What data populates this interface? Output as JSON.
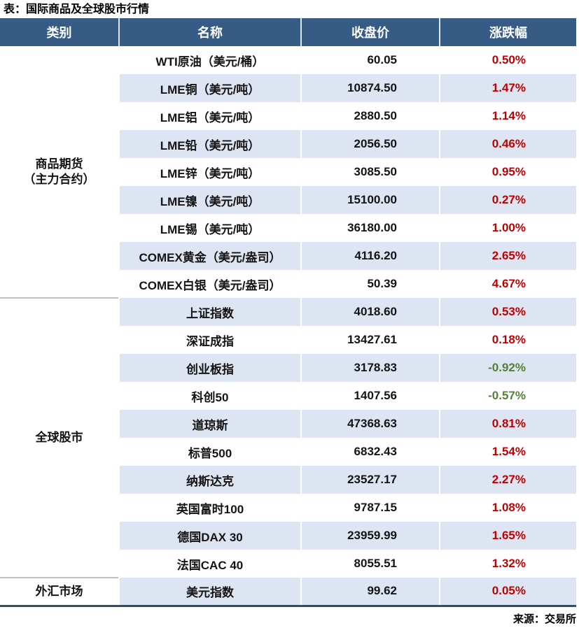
{
  "chart_data": {
    "type": "table",
    "title": "表：国际商品及全球股市行情",
    "source": "来源：交易所",
    "columns": [
      "类别",
      "名称",
      "收盘价",
      "涨跌幅"
    ],
    "groups": [
      {
        "category": [
          "商品期货",
          "（主力合约）"
        ],
        "rows": [
          {
            "name": "WTI原油（美元/桶）",
            "close": "60.05",
            "change": "0.50%",
            "direction": "up"
          },
          {
            "name": "LME铜（美元/吨）",
            "close": "10874.50",
            "change": "1.47%",
            "direction": "up"
          },
          {
            "name": "LME铝（美元/吨）",
            "close": "2880.50",
            "change": "1.14%",
            "direction": "up"
          },
          {
            "name": "LME铅（美元/吨）",
            "close": "2056.50",
            "change": "0.46%",
            "direction": "up"
          },
          {
            "name": "LME锌（美元/吨）",
            "close": "3085.50",
            "change": "0.95%",
            "direction": "up"
          },
          {
            "name": "LME镍（美元/吨）",
            "close": "15100.00",
            "change": "0.27%",
            "direction": "up"
          },
          {
            "name": "LME锡（美元/吨）",
            "close": "36180.00",
            "change": "1.00%",
            "direction": "up"
          },
          {
            "name": "COMEX黄金（美元/盎司）",
            "close": "4116.20",
            "change": "2.65%",
            "direction": "up"
          },
          {
            "name": "COMEX白银（美元/盎司）",
            "close": "50.39",
            "change": "4.67%",
            "direction": "up"
          }
        ]
      },
      {
        "category": [
          "全球股市"
        ],
        "rows": [
          {
            "name": "上证指数",
            "close": "4018.60",
            "change": "0.53%",
            "direction": "up"
          },
          {
            "name": "深证成指",
            "close": "13427.61",
            "change": "0.18%",
            "direction": "up"
          },
          {
            "name": "创业板指",
            "close": "3178.83",
            "change": "-0.92%",
            "direction": "down"
          },
          {
            "name": "科创50",
            "close": "1407.56",
            "change": "-0.57%",
            "direction": "down"
          },
          {
            "name": "道琼斯",
            "close": "47368.63",
            "change": "0.81%",
            "direction": "up"
          },
          {
            "name": "标普500",
            "close": "6832.43",
            "change": "1.54%",
            "direction": "up"
          },
          {
            "name": "纳斯达克",
            "close": "23527.17",
            "change": "2.27%",
            "direction": "up"
          },
          {
            "name": "英国富时100",
            "close": "9787.15",
            "change": "1.08%",
            "direction": "up"
          },
          {
            "name": "德国DAX 30",
            "close": "23959.99",
            "change": "1.65%",
            "direction": "up"
          },
          {
            "name": "法国CAC 40",
            "close": "8055.51",
            "change": "1.32%",
            "direction": "up"
          }
        ]
      },
      {
        "category": [
          "外汇市场"
        ],
        "rows": [
          {
            "name": "美元指数",
            "close": "99.62",
            "change": "0.05%",
            "direction": "up"
          }
        ]
      }
    ],
    "layout": {
      "striped": true,
      "first_row_background": "white",
      "price_alignment": "right",
      "change_alignment": "right"
    }
  },
  "colors": {
    "header_background": "#365C86",
    "stripe_row": "#DCE5F1",
    "positive_change": "#C00000",
    "negative_change": "#538135",
    "bottom_border": "#2B4E74",
    "section_divider": "#BFBFBF"
  }
}
